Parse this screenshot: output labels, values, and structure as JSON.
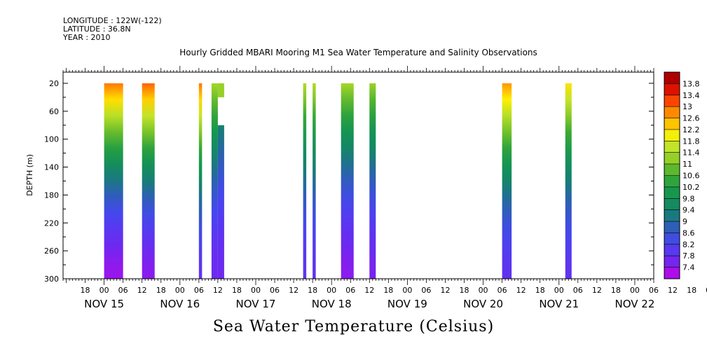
{
  "meta": {
    "longitude": "LONGITUDE : 122W(-122)",
    "latitude": "LATITUDE : 36.8N",
    "year": "YEAR : 2010"
  },
  "chart_data": {
    "type": "heatmap",
    "title": "Hourly Gridded MBARI Mooring M1 Sea Water Temperature and Salinity Observations",
    "ylabel": "DEPTH (m)",
    "colorbar_label": "Sea Water Temperature (Celsius)",
    "ylim": [
      300,
      4
    ],
    "y_inverted": true,
    "y_ticks": [
      20,
      60,
      100,
      140,
      180,
      220,
      260,
      300
    ],
    "x_start": "2010-11-14 11:00",
    "x_end": "2010-11-22 06:00",
    "x_hour_tick_labels": [
      "18",
      "00",
      "06",
      "12",
      "18",
      "00",
      "06",
      "12",
      "18",
      "00",
      "06",
      "12",
      "18",
      "00",
      "06",
      "12",
      "18",
      "00",
      "06",
      "12",
      "18",
      "00",
      "06",
      "12",
      "18",
      "00",
      "06",
      "12",
      "18",
      "00",
      "06",
      "12",
      "18",
      "00",
      "06",
      "12"
    ],
    "x_day_labels": [
      "NOV 15",
      "NOV 16",
      "NOV 17",
      "NOV 18",
      "NOV 19",
      "NOV 20",
      "NOV 21",
      "NOV 22"
    ],
    "colorbar": {
      "ticks": [
        "7.4",
        "7.8",
        "8.2",
        "8.6",
        "9",
        "9.4",
        "9.8",
        "10.2",
        "10.6",
        "11",
        "11.4",
        "11.8",
        "12.2",
        "12.6",
        "13",
        "13.4",
        "13.8"
      ],
      "min": 7.2,
      "max": 14.0
    },
    "observation_periods": [
      {
        "start": "2010-11-15 00:00",
        "end": "2010-11-15 06:00",
        "depth_top": 20,
        "depth_bottom": 300,
        "surface_temp": 12.8,
        "bottom_temp": 7.5
      },
      {
        "start": "2010-11-15 12:00",
        "end": "2010-11-15 16:00",
        "depth_top": 20,
        "depth_bottom": 300,
        "surface_temp": 12.9,
        "bottom_temp": 7.6
      },
      {
        "start": "2010-11-16 06:00",
        "end": "2010-11-16 07:00",
        "depth_top": 20,
        "depth_bottom": 300,
        "surface_temp": 12.8,
        "bottom_temp": 8.0
      },
      {
        "start": "2010-11-16 10:00",
        "end": "2010-11-16 12:00",
        "depth_top": 20,
        "depth_bottom": 300,
        "surface_temp": 11.3,
        "bottom_temp": 7.8
      },
      {
        "start": "2010-11-16 12:00",
        "end": "2010-11-16 14:00",
        "depth_top": 20,
        "depth_bottom": 40,
        "surface_temp": 11.2,
        "bottom_temp": 10.8
      },
      {
        "start": "2010-11-16 12:00",
        "end": "2010-11-16 14:00",
        "depth_top": 80,
        "depth_bottom": 300,
        "surface_temp": 10.2,
        "bottom_temp": 7.8
      },
      {
        "start": "2010-11-17 15:00",
        "end": "2010-11-17 16:00",
        "depth_top": 20,
        "depth_bottom": 300,
        "surface_temp": 11.4,
        "bottom_temp": 8.0
      },
      {
        "start": "2010-11-17 18:00",
        "end": "2010-11-17 19:00",
        "depth_top": 20,
        "depth_bottom": 300,
        "surface_temp": 11.4,
        "bottom_temp": 8.0
      },
      {
        "start": "2010-11-18 03:00",
        "end": "2010-11-18 07:00",
        "depth_top": 20,
        "depth_bottom": 300,
        "surface_temp": 11.3,
        "bottom_temp": 7.6
      },
      {
        "start": "2010-11-18 12:00",
        "end": "2010-11-18 14:00",
        "depth_top": 20,
        "depth_bottom": 300,
        "surface_temp": 11.2,
        "bottom_temp": 7.7
      },
      {
        "start": "2010-11-20 06:00",
        "end": "2010-11-20 09:00",
        "depth_top": 20,
        "depth_bottom": 300,
        "surface_temp": 12.6,
        "bottom_temp": 8.0
      },
      {
        "start": "2010-11-21 02:00",
        "end": "2010-11-21 04:00",
        "depth_top": 20,
        "depth_bottom": 300,
        "surface_temp": 12.1,
        "bottom_temp": 8.0
      }
    ],
    "grid": false,
    "legend": "right colorbar"
  }
}
